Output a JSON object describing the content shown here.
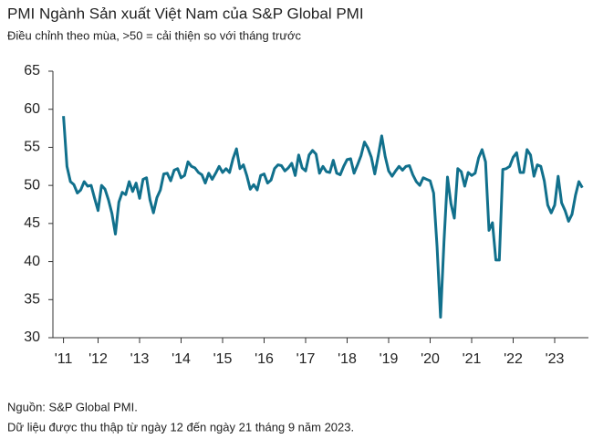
{
  "chart_data": {
    "type": "line",
    "title": "PMI Ngành Sản xuất Việt Nam của S&P Global PMI",
    "subtitle": "Điều chỉnh theo mùa, >50 = cải thiện so với tháng trước",
    "source": "Nguồn: S&P Global PMI.",
    "note": "Dữ liệu được thu thập từ ngày 12 đến ngày 21 tháng 9 năm 2023.",
    "categories": [
      "'11",
      null,
      null,
      null,
      null,
      null,
      null,
      null,
      null,
      null,
      "'12",
      null,
      null,
      null,
      null,
      null,
      null,
      null,
      null,
      null,
      null,
      null,
      "'13",
      null,
      null,
      null,
      null,
      null,
      null,
      null,
      null,
      null,
      null,
      null,
      "'14",
      null,
      null,
      null,
      null,
      null,
      null,
      null,
      null,
      null,
      null,
      null,
      "'15",
      null,
      null,
      null,
      null,
      null,
      null,
      null,
      null,
      null,
      null,
      null,
      "'16",
      null,
      null,
      null,
      null,
      null,
      null,
      null,
      null,
      null,
      null,
      null,
      "'17",
      null,
      null,
      null,
      null,
      null,
      null,
      null,
      null,
      null,
      null,
      null,
      "'18",
      null,
      null,
      null,
      null,
      null,
      null,
      null,
      null,
      null,
      null,
      null,
      "'19",
      null,
      null,
      null,
      null,
      null,
      null,
      null,
      null,
      null,
      null,
      null,
      "'20",
      null,
      null,
      null,
      null,
      null,
      null,
      null,
      null,
      null,
      null,
      null,
      "'21",
      null,
      null,
      null,
      null,
      null,
      null,
      null,
      null,
      null,
      null,
      null,
      "'22",
      null,
      null,
      null,
      null,
      null,
      null,
      null,
      null,
      null,
      null,
      null,
      "'23",
      null,
      null,
      null,
      null,
      null,
      null,
      null,
      null
    ],
    "series": [
      {
        "name": "PMI",
        "color": "#11708c",
        "values": [
          59.1,
          52.5,
          50.5,
          50.1,
          49.0,
          49.4,
          50.5,
          49.9,
          50.0,
          48.3,
          46.7,
          50.0,
          49.5,
          48.1,
          46.3,
          43.6,
          47.8,
          49.1,
          48.8,
          50.5,
          49.2,
          50.3,
          48.3,
          50.8,
          51.0,
          48.1,
          46.4,
          48.4,
          49.4,
          51.5,
          51.6,
          50.6,
          52.0,
          52.2,
          51.0,
          51.3,
          53.1,
          52.5,
          52.3,
          51.7,
          51.4,
          50.3,
          51.6,
          50.8,
          51.6,
          52.5,
          51.7,
          52.2,
          51.7,
          53.5,
          54.8,
          52.2,
          52.7,
          51.3,
          49.5,
          50.1,
          49.4,
          51.3,
          51.5,
          50.3,
          50.7,
          52.2,
          52.7,
          52.6,
          51.9,
          52.3,
          52.9,
          51.3,
          54.0,
          52.3,
          51.9,
          54.0,
          54.6,
          54.1,
          51.6,
          52.5,
          51.8,
          51.7,
          53.3,
          51.6,
          51.4,
          52.5,
          53.4,
          53.5,
          51.6,
          52.7,
          53.9,
          55.7,
          54.9,
          53.7,
          51.5,
          53.9,
          56.5,
          53.8,
          51.9,
          51.2,
          51.9,
          52.5,
          52.0,
          52.5,
          52.6,
          51.4,
          50.5,
          50.0,
          51.0,
          50.8,
          50.6,
          49.0,
          41.9,
          32.7,
          42.7,
          51.1,
          47.6,
          45.7,
          52.2,
          51.8,
          49.9,
          51.7,
          51.3,
          51.6,
          53.6,
          54.7,
          53.1,
          44.1,
          45.1,
          40.2,
          40.2,
          52.1,
          52.2,
          52.5,
          53.7,
          54.3,
          51.7,
          51.7,
          54.7,
          54.0,
          51.2,
          52.7,
          52.5,
          50.6,
          47.4,
          46.4,
          47.4,
          51.2,
          47.7,
          46.7,
          45.3,
          46.2,
          48.7,
          50.5,
          49.7
        ]
      }
    ],
    "ylim": [
      30,
      65
    ],
    "yticks": [
      30,
      35,
      40,
      45,
      50,
      55,
      60,
      65
    ],
    "grid": false
  }
}
